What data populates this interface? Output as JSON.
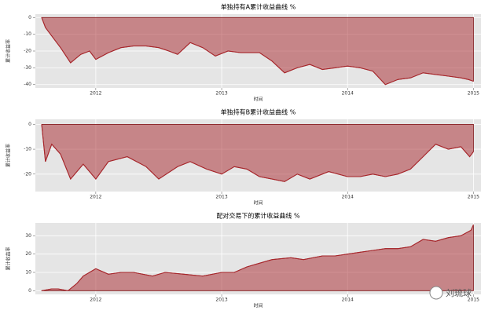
{
  "chart_data": [
    {
      "type": "area",
      "title": "单独持有A累计收益曲线 %",
      "xlabel": "时间",
      "ylabel": "累计收益率",
      "color": "#a8262b",
      "grid": true,
      "x": [
        2011.57,
        2011.6,
        2011.65,
        2011.72,
        2011.8,
        2011.88,
        2011.95,
        2012.0,
        2012.1,
        2012.2,
        2012.3,
        2012.4,
        2012.5,
        2012.58,
        2012.65,
        2012.75,
        2012.85,
        2012.95,
        2013.05,
        2013.15,
        2013.3,
        2013.4,
        2013.5,
        2013.6,
        2013.7,
        2013.8,
        2013.9,
        2014.0,
        2014.1,
        2014.2,
        2014.3,
        2014.4,
        2014.5,
        2014.6,
        2014.7,
        2014.8,
        2014.9,
        2014.96,
        2015.0
      ],
      "values": [
        0,
        -6,
        -11,
        -18,
        -27,
        -22,
        -20,
        -25,
        -21,
        -18,
        -17,
        -17,
        -18,
        -20,
        -22,
        -15,
        -18,
        -23,
        -20,
        -21,
        -21,
        -26,
        -33,
        -30,
        -28,
        -31,
        -30,
        -29,
        -30,
        -32,
        -40,
        -37,
        -36,
        -33,
        -34,
        -35,
        -36,
        -37,
        -38
      ],
      "xlim": [
        2011.52,
        2015.06
      ],
      "ylim": [
        -42,
        2
      ],
      "xticks": [
        2012,
        2013,
        2014,
        2015
      ],
      "yticks": [
        -40,
        -30,
        -20,
        -10,
        0
      ]
    },
    {
      "type": "area",
      "title": "单独持有B累计收益曲线 %",
      "xlabel": "时间",
      "ylabel": "累计收益率",
      "color": "#a8262b",
      "grid": true,
      "x": [
        2011.57,
        2011.6,
        2011.65,
        2011.72,
        2011.8,
        2011.9,
        2012.0,
        2012.1,
        2012.25,
        2012.4,
        2012.5,
        2012.65,
        2012.75,
        2012.88,
        2013.0,
        2013.1,
        2013.2,
        2013.3,
        2013.4,
        2013.5,
        2013.6,
        2013.7,
        2013.85,
        2014.0,
        2014.1,
        2014.2,
        2014.3,
        2014.4,
        2014.5,
        2014.6,
        2014.7,
        2014.8,
        2014.9,
        2014.97,
        2015.0
      ],
      "values": [
        0,
        -15,
        -8,
        -12,
        -22,
        -16,
        -22,
        -15,
        -13,
        -17,
        -22,
        -17,
        -15,
        -18,
        -20,
        -17,
        -18,
        -21,
        -22,
        -23,
        -20,
        -22,
        -19,
        -21,
        -21,
        -20,
        -21,
        -20,
        -18,
        -13,
        -8,
        -10,
        -9,
        -13,
        -11
      ],
      "xlim": [
        2011.52,
        2015.06
      ],
      "ylim": [
        -27,
        2
      ],
      "xticks": [
        2012,
        2013,
        2014,
        2015
      ],
      "yticks": [
        -20,
        -10,
        0
      ]
    },
    {
      "type": "area",
      "title": "配对交易下的累计收益曲线 %",
      "xlabel": "时间",
      "ylabel": "累计收益率",
      "color": "#a8262b",
      "grid": true,
      "x": [
        2011.57,
        2011.65,
        2011.7,
        2011.78,
        2011.85,
        2011.9,
        2012.0,
        2012.1,
        2012.2,
        2012.3,
        2012.45,
        2012.55,
        2012.7,
        2012.85,
        2013.0,
        2013.1,
        2013.2,
        2013.3,
        2013.4,
        2013.55,
        2013.65,
        2013.8,
        2013.9,
        2014.0,
        2014.1,
        2014.2,
        2014.3,
        2014.4,
        2014.5,
        2014.6,
        2014.7,
        2014.8,
        2014.9,
        2014.98,
        2015.0
      ],
      "values": [
        0,
        1,
        1,
        0,
        4,
        8,
        12,
        9,
        10,
        10,
        8,
        10,
        9,
        8,
        10,
        10,
        13,
        15,
        17,
        18,
        17,
        19,
        19,
        20,
        21,
        22,
        23,
        23,
        24,
        28,
        27,
        29,
        30,
        33,
        36
      ],
      "xlim": [
        2011.52,
        2015.06
      ],
      "ylim": [
        -2,
        37
      ],
      "xticks": [
        2012,
        2013,
        2014,
        2015
      ],
      "yticks": [
        0,
        10,
        20,
        30
      ]
    }
  ],
  "watermark": "刘琉球"
}
